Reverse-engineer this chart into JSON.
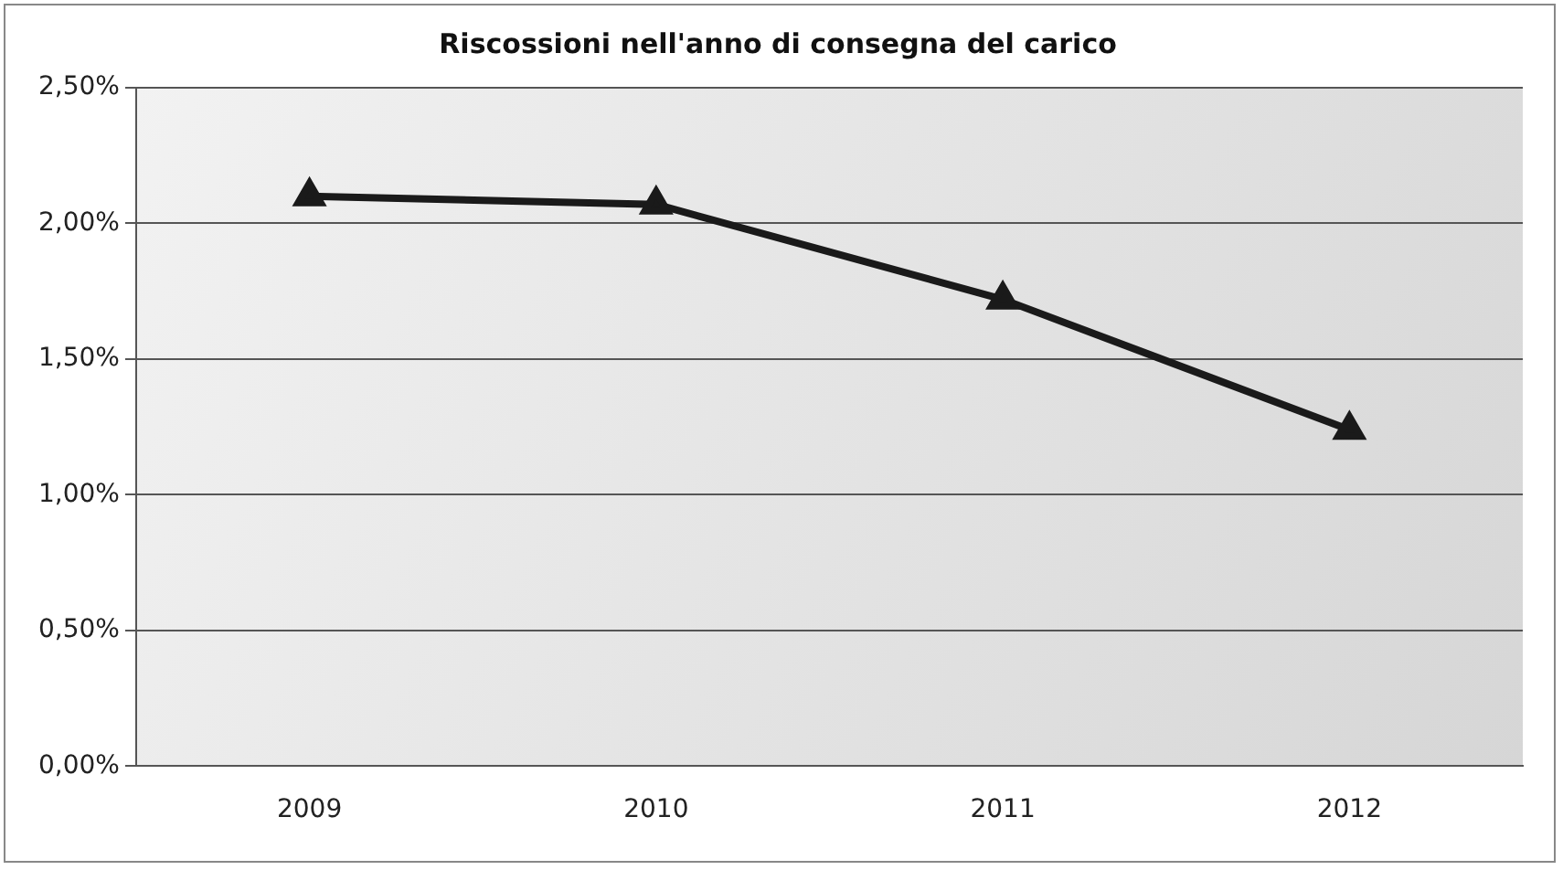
{
  "chart_data": {
    "type": "line",
    "title": "Riscossioni nell'anno di consegna del carico",
    "categories": [
      "2009",
      "2010",
      "2011",
      "2012"
    ],
    "series": [
      {
        "color": "#1a1a1a",
        "values": [
          2.1,
          2.07,
          1.72,
          1.24
        ]
      }
    ],
    "ylim": [
      0,
      2.5
    ],
    "yticks": [
      {
        "value": 0,
        "label": "0,00%"
      },
      {
        "value": 0.5,
        "label": "0,50%"
      },
      {
        "value": 1,
        "label": "1,00%"
      },
      {
        "value": 1.5,
        "label": "1,50%"
      },
      {
        "value": 2,
        "label": "2,00%"
      },
      {
        "value": 2.5,
        "label": "2,50%"
      }
    ],
    "grid": "y",
    "marker": "triangle",
    "line_style": "solid",
    "legend": false
  }
}
